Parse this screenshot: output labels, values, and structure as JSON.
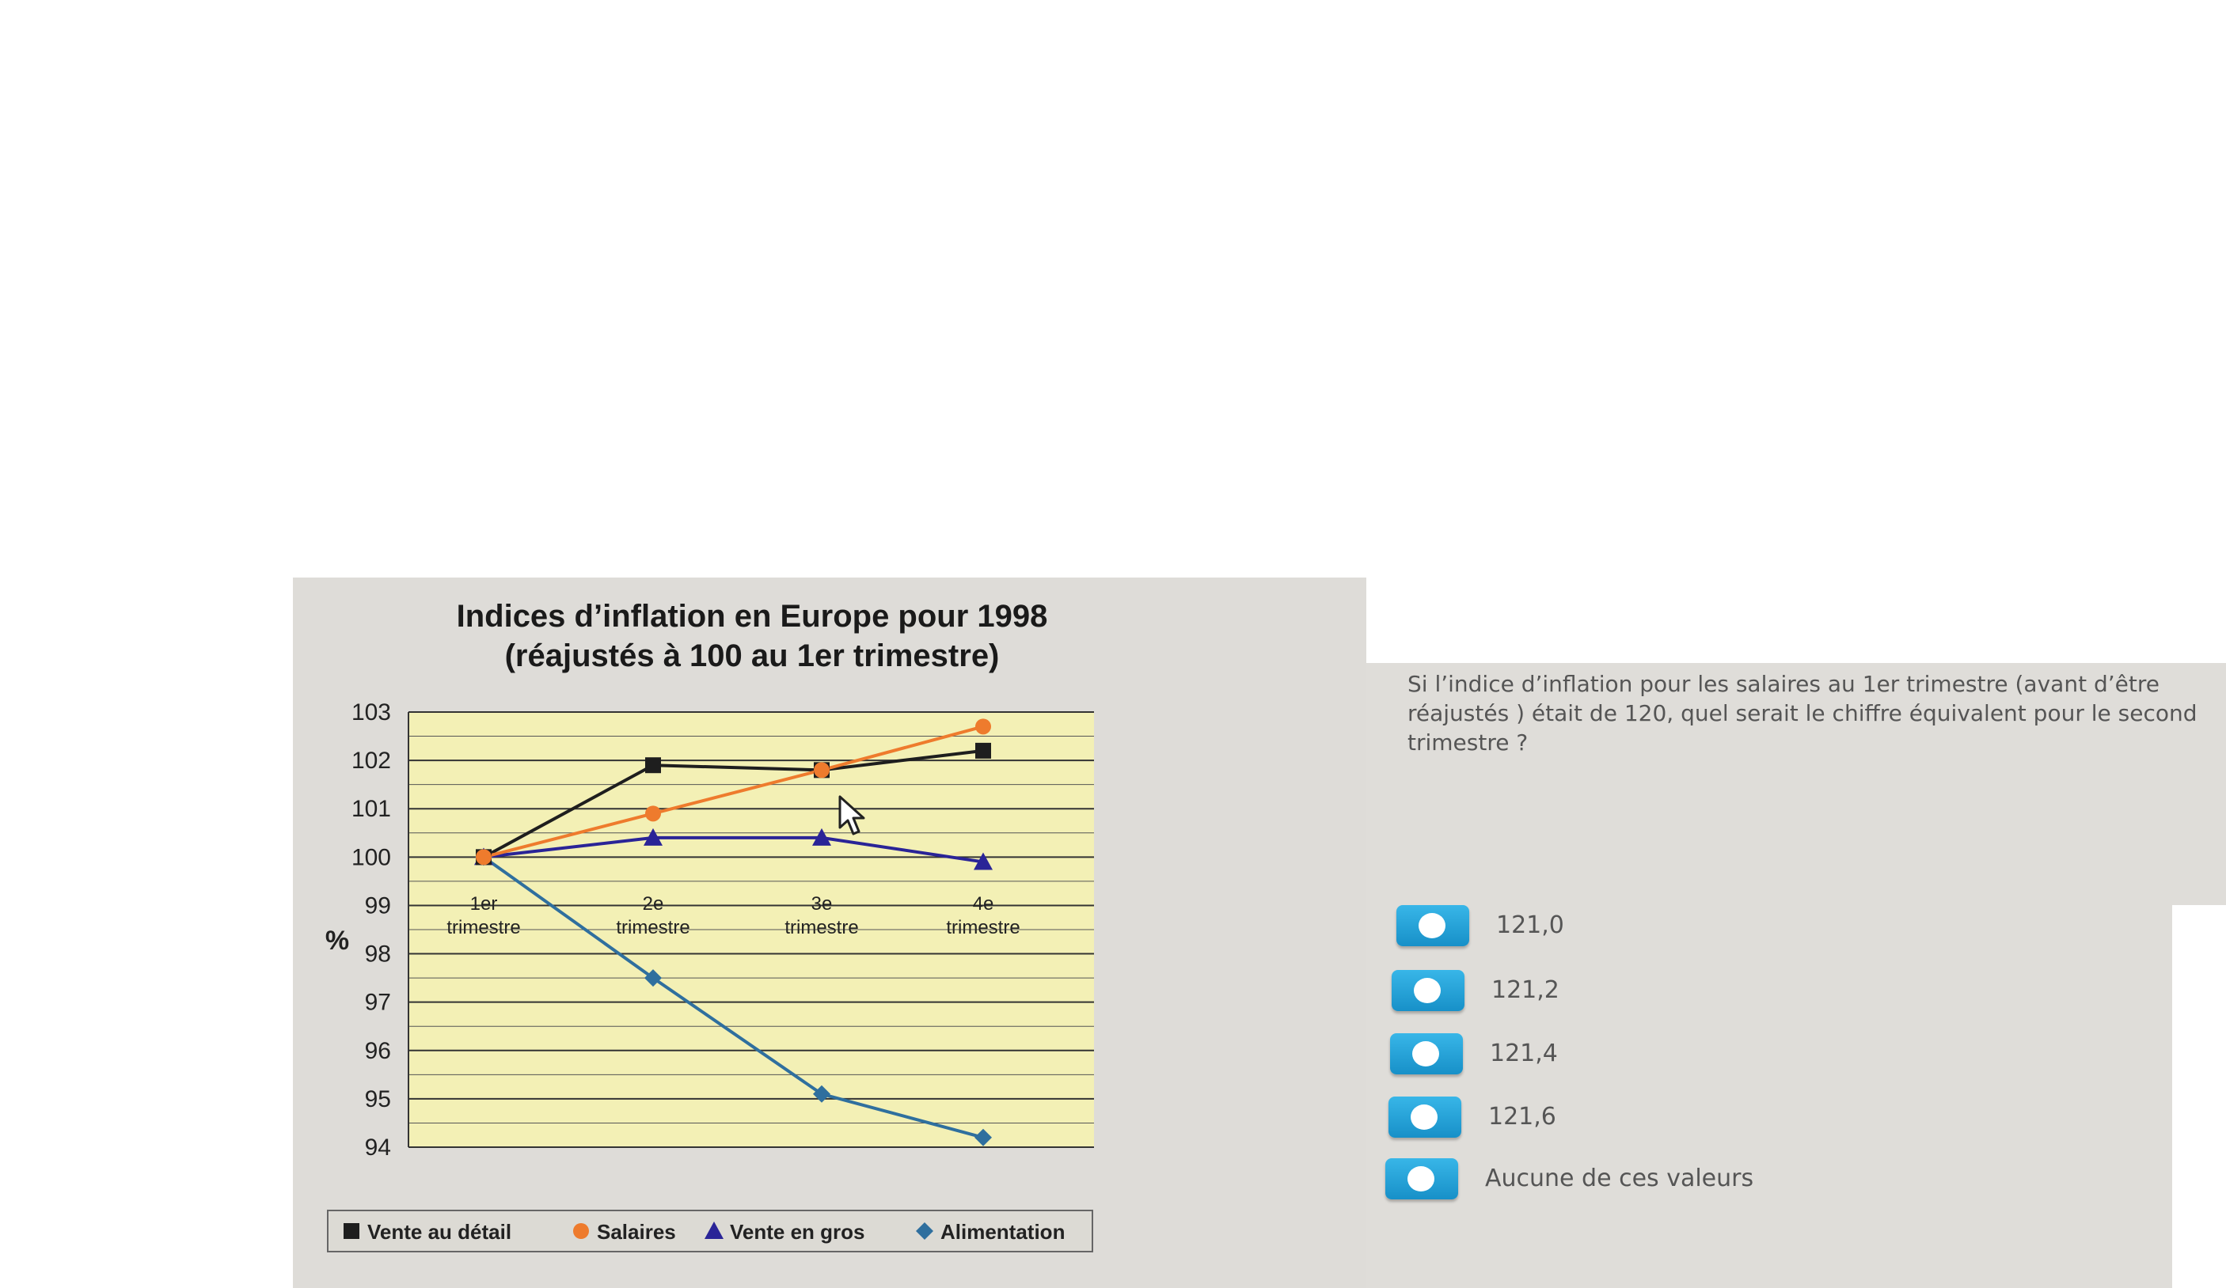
{
  "chart_data": {
    "type": "line",
    "title_line1": "Indices d’inflation en Europe pour 1998",
    "title_line2": "(réajustés à 100 au 1er trimestre)",
    "ylabel": "%",
    "ylim": [
      94,
      103
    ],
    "yticks": [
      103,
      102,
      101,
      100,
      99,
      98,
      97,
      96,
      95,
      94
    ],
    "categories": [
      {
        "line1": "1er",
        "line2": "trimestre"
      },
      {
        "line1": "2e",
        "line2": "trimestre"
      },
      {
        "line1": "3e",
        "line2": "trimestre"
      },
      {
        "line1": "4e",
        "line2": "trimestre"
      }
    ],
    "series": [
      {
        "name": "Vente au détail",
        "marker": "square",
        "color": "#1e1e1e",
        "values": [
          100,
          101.9,
          101.8,
          102.2
        ]
      },
      {
        "name": "Salaires",
        "marker": "circle",
        "color": "#ee7b2d",
        "values": [
          100,
          100.9,
          101.8,
          102.7
        ]
      },
      {
        "name": "Vente en gros",
        "marker": "triangle",
        "color": "#2a2497",
        "values": [
          100,
          100.4,
          100.4,
          99.9
        ]
      },
      {
        "name": "Alimentation",
        "marker": "diamond",
        "color": "#2f6f9e",
        "values": [
          100,
          97.5,
          95.1,
          94.2
        ]
      }
    ],
    "plot_background": "#f3f0b5",
    "grid": true,
    "legend_position": "bottom"
  },
  "question": {
    "text": "Si l’indice d’inflation pour les salaires au 1er trimestre (avant d’être réajustés ) était de 120, quel serait le chiffre équivalent pour le second trimestre ?"
  },
  "answers": [
    {
      "label": "121,0"
    },
    {
      "label": "121,2"
    },
    {
      "label": "121,4"
    },
    {
      "label": "121,6"
    },
    {
      "label": "Aucune de ces valeurs"
    }
  ],
  "colors": {
    "radio_button": "#2aa6dc",
    "panel_background": "#dfddd9"
  },
  "icons": {
    "cursor": "mouse-pointer-icon"
  }
}
